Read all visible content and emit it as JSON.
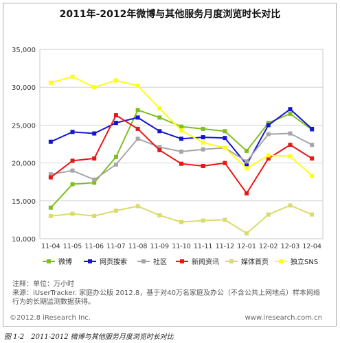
{
  "chart_data": {
    "type": "line",
    "title": "2011年-2012年微博与其他服务月度浏览时长对比",
    "categories": [
      "11-04",
      "11-05",
      "11-06",
      "11-07",
      "11-08",
      "11-09",
      "11-10",
      "11-11",
      "11-12",
      "12-01",
      "12-02",
      "12-03",
      "12-04"
    ],
    "ylim": [
      10000,
      35000
    ],
    "yticks": [
      "10,000",
      "15,000",
      "20,000",
      "25,000",
      "30,000",
      "35,000"
    ],
    "yticks_values": [
      10000,
      15000,
      20000,
      25000,
      30000,
      35000
    ],
    "grid": true,
    "legend_position": "bottom",
    "series": [
      {
        "name": "微博",
        "color": "#7fbf1f",
        "marker": "square",
        "values": [
          14100,
          17200,
          17400,
          20800,
          27000,
          26000,
          24800,
          24500,
          24200,
          21600,
          25300,
          26500,
          24400
        ]
      },
      {
        "name": "网页搜索",
        "color": "#1414d6",
        "marker": "square",
        "values": [
          22800,
          24100,
          23900,
          25300,
          26000,
          24200,
          23200,
          23400,
          23300,
          19800,
          25000,
          27100,
          24500
        ]
      },
      {
        "name": "社区",
        "color": "#a6a6a6",
        "marker": "square",
        "values": [
          18500,
          19000,
          17800,
          19800,
          23200,
          22100,
          21500,
          21800,
          22000,
          20200,
          23800,
          23900,
          22400
        ]
      },
      {
        "name": "新闻资讯",
        "color": "#ea1515",
        "marker": "square",
        "values": [
          18100,
          20300,
          20600,
          26300,
          24500,
          21700,
          19900,
          19600,
          20000,
          16000,
          20600,
          22400,
          20600
        ]
      },
      {
        "name": "媒体首页",
        "color": "#dada6e",
        "marker": "square",
        "values": [
          13000,
          13300,
          13000,
          13700,
          14300,
          13100,
          12200,
          12400,
          12500,
          10700,
          13200,
          14400,
          13200
        ]
      },
      {
        "name": "独立SNS",
        "color": "#ffff14",
        "marker": "square",
        "values": [
          30600,
          31400,
          30000,
          30900,
          30200,
          27200,
          24300,
          22700,
          22000,
          19300,
          21000,
          20900,
          18300
        ]
      }
    ]
  },
  "notes": {
    "line1": "注释：单位：万小时",
    "line2": "来源：iUserTracker. 家庭办公版 2012.8，基于对40万名家庭及办公（不含公共上网地点）样本网络",
    "line3": "行为的长期监测数据获得。"
  },
  "footer": {
    "copyright": "©2012.8 iResearch Inc.",
    "website": "www.iresearch.com.cn"
  },
  "caption": "图 1-2　2011-2012 微博与其他服务月度浏览时长对比"
}
